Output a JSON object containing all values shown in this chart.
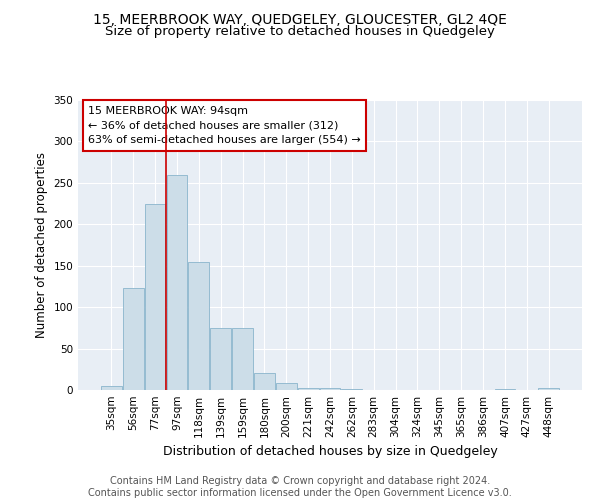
{
  "title": "15, MEERBROOK WAY, QUEDGELEY, GLOUCESTER, GL2 4QE",
  "subtitle": "Size of property relative to detached houses in Quedgeley",
  "xlabel": "Distribution of detached houses by size in Quedgeley",
  "ylabel": "Number of detached properties",
  "bar_values": [
    5,
    123,
    224,
    260,
    154,
    75,
    75,
    20,
    8,
    3,
    2,
    1,
    0,
    0,
    0,
    0,
    0,
    0,
    1,
    0,
    2
  ],
  "bin_labels": [
    "35sqm",
    "56sqm",
    "77sqm",
    "97sqm",
    "118sqm",
    "139sqm",
    "159sqm",
    "180sqm",
    "200sqm",
    "221sqm",
    "242sqm",
    "262sqm",
    "283sqm",
    "304sqm",
    "324sqm",
    "345sqm",
    "365sqm",
    "386sqm",
    "407sqm",
    "427sqm",
    "448sqm"
  ],
  "bar_color": "#ccdde8",
  "bar_edge_color": "#8ab4cc",
  "vline_x": 2.5,
  "vline_color": "#cc0000",
  "annotation_text": "15 MEERBROOK WAY: 94sqm\n← 36% of detached houses are smaller (312)\n63% of semi-detached houses are larger (554) →",
  "annotation_box_color": "#ffffff",
  "annotation_box_edge": "#cc0000",
  "ylim": [
    0,
    350
  ],
  "yticks": [
    0,
    50,
    100,
    150,
    200,
    250,
    300,
    350
  ],
  "background_color": "#e8eef5",
  "grid_color": "#ffffff",
  "footer_text": "Contains HM Land Registry data © Crown copyright and database right 2024.\nContains public sector information licensed under the Open Government Licence v3.0.",
  "title_fontsize": 10,
  "subtitle_fontsize": 9.5,
  "xlabel_fontsize": 9,
  "ylabel_fontsize": 8.5,
  "tick_fontsize": 7.5,
  "annotation_fontsize": 8,
  "footer_fontsize": 7
}
